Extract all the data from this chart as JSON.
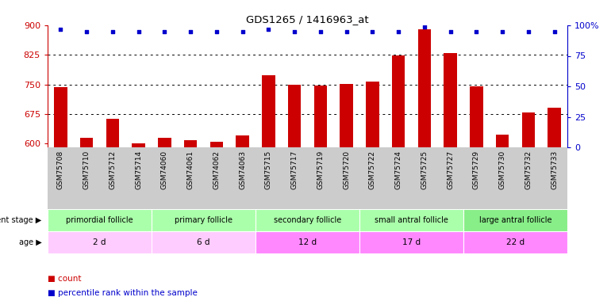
{
  "title": "GDS1265 / 1416963_at",
  "samples": [
    "GSM75708",
    "GSM75710",
    "GSM75712",
    "GSM75714",
    "GSM74060",
    "GSM74061",
    "GSM74062",
    "GSM74063",
    "GSM75715",
    "GSM75717",
    "GSM75719",
    "GSM75720",
    "GSM75722",
    "GSM75724",
    "GSM75725",
    "GSM75727",
    "GSM75729",
    "GSM75730",
    "GSM75732",
    "GSM75733"
  ],
  "counts": [
    742,
    614,
    663,
    601,
    614,
    609,
    604,
    620,
    773,
    749,
    748,
    752,
    757,
    824,
    890,
    830,
    744,
    623,
    678,
    690
  ],
  "percentiles": [
    97,
    95,
    95,
    95,
    95,
    95,
    95,
    95,
    97,
    95,
    95,
    95,
    95,
    95,
    99,
    95,
    95,
    95,
    95,
    95
  ],
  "bar_color": "#cc0000",
  "dot_color": "#0000cc",
  "ylim_left": [
    590,
    900
  ],
  "ylim_right": [
    0,
    100
  ],
  "yticks_left": [
    600,
    675,
    750,
    825,
    900
  ],
  "yticks_right": [
    0,
    25,
    50,
    75,
    100
  ],
  "yticklabels_right": [
    "0",
    "25",
    "50",
    "75",
    "100%"
  ],
  "groups": [
    {
      "label": "primordial follicle",
      "age": "2 d",
      "dev_color": "#aaffaa",
      "age_color": "#ffccff",
      "start": 0,
      "end": 4
    },
    {
      "label": "primary follicle",
      "age": "6 d",
      "dev_color": "#aaffaa",
      "age_color": "#ffccff",
      "start": 4,
      "end": 8
    },
    {
      "label": "secondary follicle",
      "age": "12 d",
      "dev_color": "#aaffaa",
      "age_color": "#ff88ff",
      "start": 8,
      "end": 12
    },
    {
      "label": "small antral follicle",
      "age": "17 d",
      "dev_color": "#aaffaa",
      "age_color": "#ff88ff",
      "start": 12,
      "end": 16
    },
    {
      "label": "large antral follicle",
      "age": "22 d",
      "dev_color": "#88ee88",
      "age_color": "#ff88ff",
      "start": 16,
      "end": 20
    }
  ],
  "background_color": "#ffffff",
  "tick_bg_color": "#cccccc",
  "gridline_color": "#555555",
  "gridline_ticks": [
    675,
    750,
    825
  ],
  "bar_width": 0.5
}
